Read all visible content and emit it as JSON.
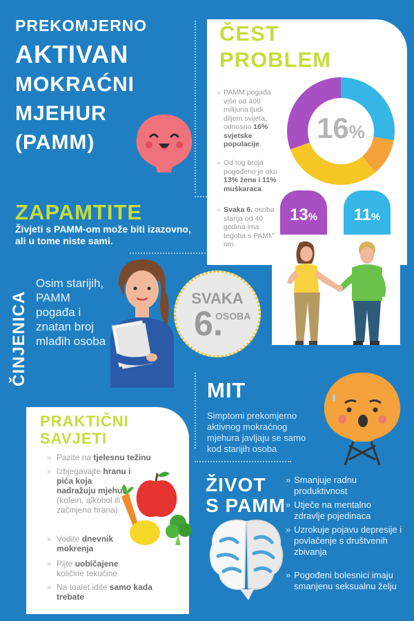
{
  "title": {
    "line1": "PREKOMJERNO",
    "line2": "AKTIVAN",
    "line3": "MOKRAĆNI",
    "line4": "MJEHUR",
    "line5": "(PAMM)"
  },
  "common_problem": {
    "heading1": "ČEST",
    "heading2": "PROBLEM",
    "donut_value": "16",
    "donut_unit": "%",
    "bullets": [
      {
        "pre": "PAMM pogađa više od 400 milijuna ljudi diljem svijeta, odnosno ",
        "bold": "16% svjetske populacije",
        "post": "."
      },
      {
        "pre": "Od tog broja pogođeno je oko ",
        "bold": "13% žena i 11% muškaraca",
        "post": "."
      },
      {
        "pre": "",
        "bold": "Svaka 6.",
        "post": " osoba starija od 40 godina ima tegoba s PAMM-om."
      }
    ],
    "women_value": "13",
    "men_value": "11",
    "unit": "%"
  },
  "remember": {
    "heading": "ZAPAMTITE",
    "text": "Živjeti s PAMM-om može biti izazovno, ali u tome niste sami."
  },
  "fact": {
    "heading": "ČINJENICA",
    "text": "Osim starijih, PAMM pogađa i znatan broj mlađih osoba"
  },
  "badge": {
    "svaka": "SVAKA",
    "number": "6.",
    "osoba": "OSOBA"
  },
  "myth": {
    "heading": "MIT",
    "text": "Simptomi prekomjerno aktivnog mokraćnog mjehura javljaju se samo kod starijih osoba"
  },
  "tips": {
    "heading1": "PRAKTIČNI",
    "heading2": "SAVJETI",
    "items": [
      {
        "pre": "Pazite na ",
        "bold": "tjelesnu težinu",
        "post": ""
      },
      {
        "pre": "Izbjegavajte ",
        "bold": "hranu i pića koja nadražuju mjehur",
        "post": " (kofein, alkohol ili začinjena hrana)"
      },
      {
        "pre": "Vodite ",
        "bold": "dnevnik mokrenja",
        "post": ""
      },
      {
        "pre": "Pijte ",
        "bold": "uobičajene",
        "post": " količine tekućine"
      },
      {
        "pre": "Na toalet idite ",
        "bold": "samo kada trebate",
        "post": ""
      }
    ],
    "bullet": "»"
  },
  "life": {
    "heading1": "ŽIVOT",
    "heading2": "S PAMM",
    "items": [
      "Smanjuje radnu produktivnost",
      "Utječe na mentalno zdravlje pojedinaca",
      "Uzrokuje pojavu depresije i povlačenje s društvenih zbivanja",
      "Pogođeni bolesnici imaju smanjenu seksualnu želju"
    ],
    "bullet": "»"
  },
  "colors": {
    "background": "#1f7fc2",
    "accent_green": "#c6dc3c",
    "donut_blue": "#35b6e6",
    "donut_orange": "#f3a33a",
    "donut_yellow": "#f6c624",
    "donut_purple": "#a94fc4",
    "women_box": "#a94fc4",
    "men_box": "#35b6e6"
  }
}
